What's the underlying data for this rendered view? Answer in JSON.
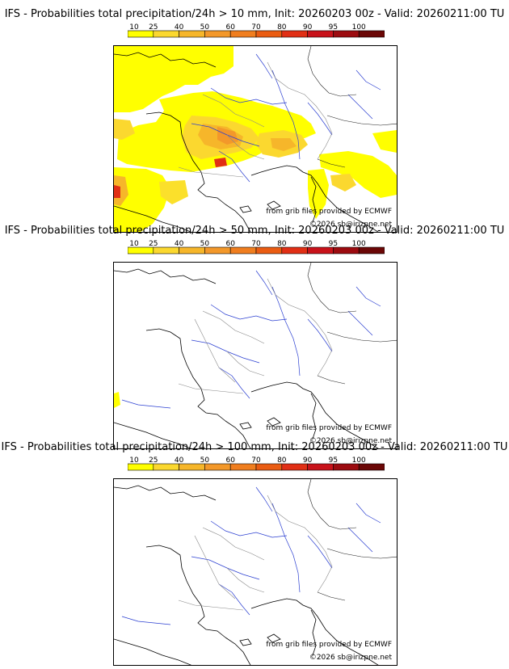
{
  "colorbar": {
    "ticks": [
      "10",
      "25",
      "40",
      "50",
      "60",
      "70",
      "80",
      "90",
      "95",
      "100"
    ],
    "colors": [
      "#ffff00",
      "#fbd82f",
      "#f6b62a",
      "#f3982a",
      "#f07e1f",
      "#ea5c12",
      "#e12f15",
      "#c8121a",
      "#9c0b10",
      "#6b0706"
    ]
  },
  "credits": {
    "provider": "from grib files provided by ECMWF",
    "copyright": "©2026 sb@irizpne.net"
  },
  "panels": [
    {
      "title": "IFS - Probabilities total precipitation/24h > 10 mm, Init: 20260203 00z - Valid: 20260211:00 TU",
      "threshold_mm": 10
    },
    {
      "title": "IFS - Probabilities total precipitation/24h > 50 mm, Init: 20260203 00z - Valid: 20260211:00 TU",
      "threshold_mm": 50
    },
    {
      "title": "IFS - Probabilities total precipitation/24h > 100 mm, Init: 20260203 00z - Valid: 20260211:00 TU",
      "threshold_mm": 100
    }
  ]
}
